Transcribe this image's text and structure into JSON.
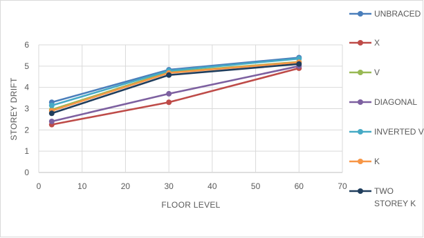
{
  "chart_data": {
    "type": "line",
    "title": "",
    "xlabel": "FLOOR LEVEL",
    "ylabel": "STOREY DRIFT",
    "xlim": [
      0,
      70
    ],
    "ylim": [
      0,
      6
    ],
    "xticks": [
      0,
      10,
      20,
      30,
      40,
      50,
      60,
      70
    ],
    "yticks": [
      0,
      1,
      2,
      3,
      4,
      5,
      6
    ],
    "grid": true,
    "legend_position": "right",
    "x": [
      3,
      30,
      60
    ],
    "series": [
      {
        "name": "UNBRACED",
        "color": "#4a7ebb",
        "values": [
          3.3,
          4.83,
          5.4
        ]
      },
      {
        "name": "X",
        "color": "#be4b48",
        "values": [
          2.25,
          3.3,
          4.9
        ]
      },
      {
        "name": "V",
        "color": "#98b954",
        "values": [
          2.95,
          4.72,
          5.2
        ]
      },
      {
        "name": "DIAGONAL",
        "color": "#7d60a0",
        "values": [
          2.4,
          3.7,
          5.0
        ]
      },
      {
        "name": "INVERTED V",
        "color": "#46aac5",
        "values": [
          3.15,
          4.78,
          5.35
        ]
      },
      {
        "name": "K",
        "color": "#f79646",
        "values": [
          2.9,
          4.68,
          5.18
        ]
      },
      {
        "name": "TWO STOREY K",
        "color": "#1f3d5c",
        "values": [
          2.78,
          4.58,
          5.1
        ]
      }
    ]
  }
}
